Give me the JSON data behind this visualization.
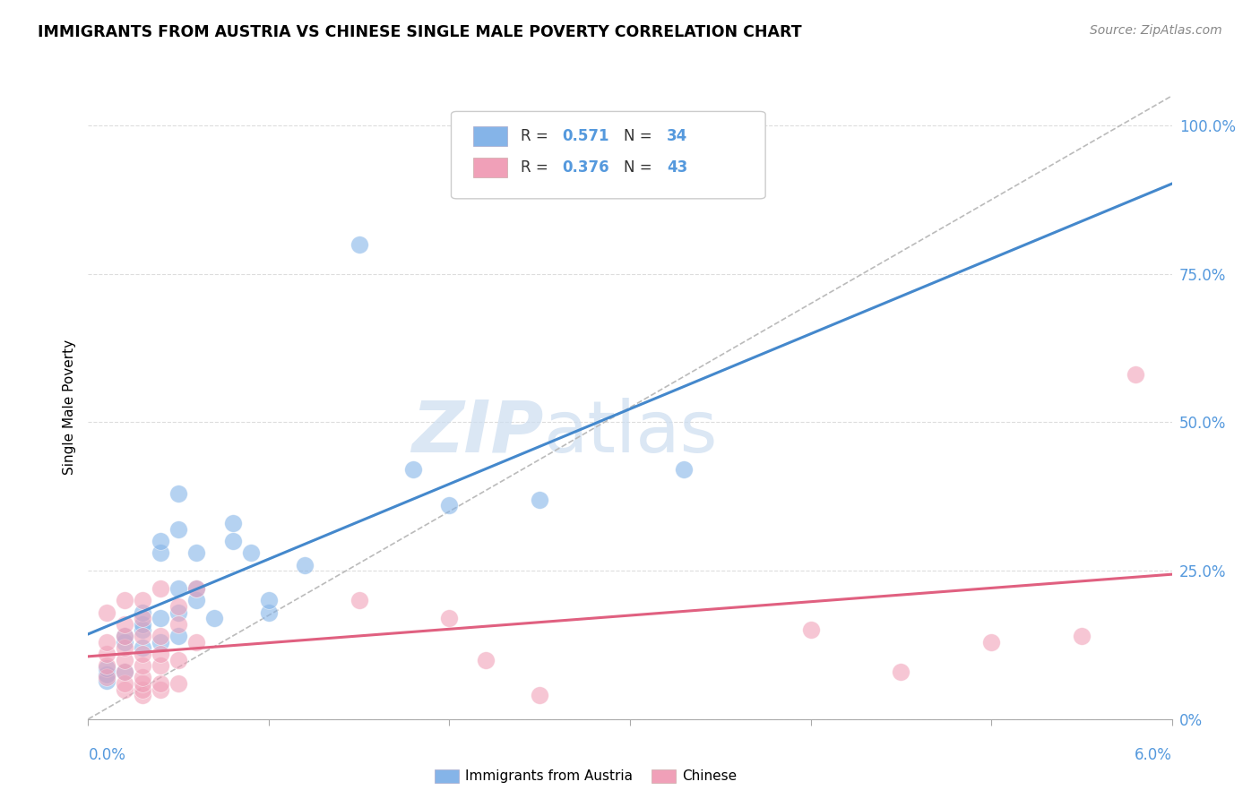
{
  "title": "IMMIGRANTS FROM AUSTRIA VS CHINESE SINGLE MALE POVERTY CORRELATION CHART",
  "source": "Source: ZipAtlas.com",
  "ylabel": "Single Male Poverty",
  "watermark_zip": "ZIP",
  "watermark_atlas": "atlas",
  "legend1_r": "0.571",
  "legend1_n": "34",
  "legend2_r": "0.376",
  "legend2_n": "43",
  "austria_color": "#85b4e8",
  "chinese_color": "#f0a0b8",
  "austria_trendline_color": "#4488cc",
  "chinese_trendline_color": "#e06080",
  "diagonal_color": "#bbbbbb",
  "blue_label_color": "#5599dd",
  "austria_points": [
    [
      0.001,
      0.065
    ],
    [
      0.001,
      0.075
    ],
    [
      0.001,
      0.085
    ],
    [
      0.002,
      0.08
    ],
    [
      0.002,
      0.13
    ],
    [
      0.002,
      0.14
    ],
    [
      0.003,
      0.12
    ],
    [
      0.003,
      0.15
    ],
    [
      0.003,
      0.16
    ],
    [
      0.003,
      0.18
    ],
    [
      0.004,
      0.13
    ],
    [
      0.004,
      0.17
    ],
    [
      0.004,
      0.28
    ],
    [
      0.004,
      0.3
    ],
    [
      0.005,
      0.14
    ],
    [
      0.005,
      0.18
    ],
    [
      0.005,
      0.22
    ],
    [
      0.005,
      0.32
    ],
    [
      0.005,
      0.38
    ],
    [
      0.006,
      0.2
    ],
    [
      0.006,
      0.22
    ],
    [
      0.006,
      0.28
    ],
    [
      0.007,
      0.17
    ],
    [
      0.008,
      0.3
    ],
    [
      0.008,
      0.33
    ],
    [
      0.009,
      0.28
    ],
    [
      0.01,
      0.18
    ],
    [
      0.01,
      0.2
    ],
    [
      0.012,
      0.26
    ],
    [
      0.015,
      0.8
    ],
    [
      0.018,
      0.42
    ],
    [
      0.02,
      0.36
    ],
    [
      0.025,
      0.37
    ],
    [
      0.033,
      0.42
    ]
  ],
  "chinese_points": [
    [
      0.001,
      0.07
    ],
    [
      0.001,
      0.09
    ],
    [
      0.001,
      0.11
    ],
    [
      0.001,
      0.13
    ],
    [
      0.001,
      0.18
    ],
    [
      0.002,
      0.05
    ],
    [
      0.002,
      0.06
    ],
    [
      0.002,
      0.08
    ],
    [
      0.002,
      0.1
    ],
    [
      0.002,
      0.12
    ],
    [
      0.002,
      0.14
    ],
    [
      0.002,
      0.16
    ],
    [
      0.002,
      0.2
    ],
    [
      0.003,
      0.04
    ],
    [
      0.003,
      0.05
    ],
    [
      0.003,
      0.06
    ],
    [
      0.003,
      0.07
    ],
    [
      0.003,
      0.09
    ],
    [
      0.003,
      0.11
    ],
    [
      0.003,
      0.14
    ],
    [
      0.003,
      0.17
    ],
    [
      0.003,
      0.2
    ],
    [
      0.004,
      0.05
    ],
    [
      0.004,
      0.06
    ],
    [
      0.004,
      0.09
    ],
    [
      0.004,
      0.11
    ],
    [
      0.004,
      0.14
    ],
    [
      0.004,
      0.22
    ],
    [
      0.005,
      0.06
    ],
    [
      0.005,
      0.1
    ],
    [
      0.005,
      0.16
    ],
    [
      0.005,
      0.19
    ],
    [
      0.006,
      0.13
    ],
    [
      0.006,
      0.22
    ],
    [
      0.015,
      0.2
    ],
    [
      0.02,
      0.17
    ],
    [
      0.022,
      0.1
    ],
    [
      0.025,
      0.04
    ],
    [
      0.04,
      0.15
    ],
    [
      0.045,
      0.08
    ],
    [
      0.05,
      0.13
    ],
    [
      0.055,
      0.14
    ],
    [
      0.058,
      0.58
    ]
  ],
  "xlim": [
    0.0,
    0.06
  ],
  "ylim": [
    0.0,
    1.05
  ],
  "xticks": [
    0.0,
    0.01,
    0.02,
    0.03,
    0.04,
    0.05,
    0.06
  ],
  "yticks_right": [
    0.0,
    0.25,
    0.5,
    0.75,
    1.0
  ],
  "ytick_labels_right": [
    "0%",
    "25.0%",
    "50.0%",
    "75.0%",
    "100.0%"
  ],
  "grid_color": "#dddddd",
  "spine_color": "#aaaaaa"
}
